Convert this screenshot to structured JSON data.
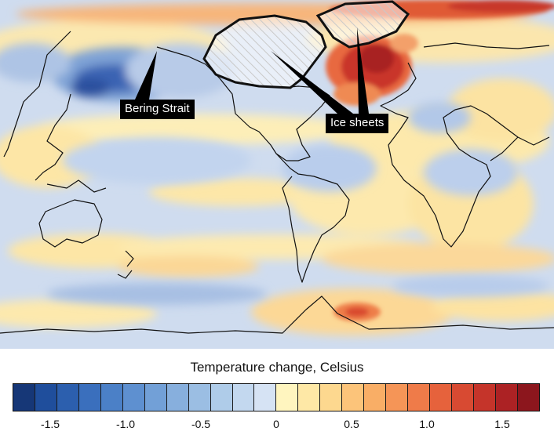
{
  "map": {
    "ocean_fill": "#cfdcef",
    "annotations": {
      "bering": "Bering Strait",
      "ice_sheets": "Ice sheets"
    }
  },
  "legend": {
    "title": "Temperature change, Celsius",
    "ticks": [
      "-1.5",
      "-1.0",
      "-0.5",
      "0",
      "0.5",
      "1.0",
      "1.5"
    ],
    "colors": [
      "#163777",
      "#1f4e9c",
      "#2c5fae",
      "#3a6fbd",
      "#4b80c7",
      "#5e90d0",
      "#72a0d7",
      "#87afdd",
      "#9bbee3",
      "#afcce9",
      "#c3d8ef",
      "#d6e3f4",
      "#fff5bf",
      "#fee8a6",
      "#fdd88f",
      "#fcc47a",
      "#f9ae66",
      "#f59557",
      "#ef7b49",
      "#e6623c",
      "#d84a32",
      "#c5342a",
      "#ac2224",
      "#8c161d"
    ]
  }
}
